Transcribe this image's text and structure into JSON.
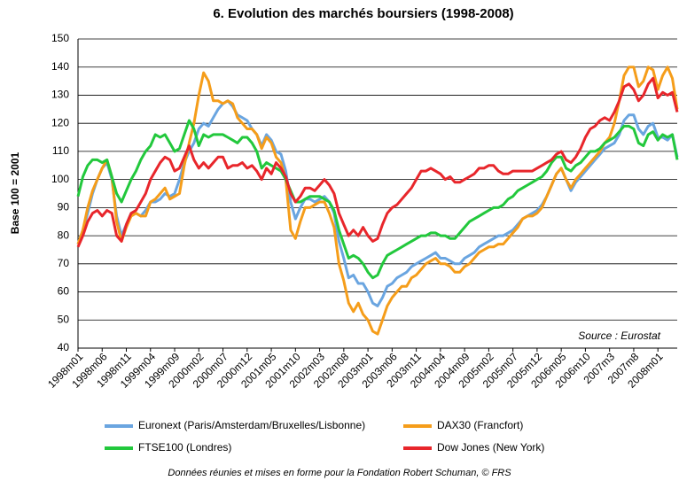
{
  "chart_data": {
    "type": "line",
    "title": "6.  Evolution des marchés boursiers (1998-2008)",
    "y_label": "Base 100 = 2001",
    "annotation": "Source : Eurostat",
    "footnote": "Données réunies et mises en forme pour la Fondation Robert Schuman, © FRS",
    "ylim": [
      40,
      150
    ],
    "yticks": [
      40,
      50,
      60,
      70,
      80,
      90,
      100,
      110,
      120,
      130,
      140,
      150
    ],
    "grid": true,
    "categories": [
      "1998m01",
      null,
      null,
      null,
      null,
      "1998m06",
      null,
      null,
      null,
      null,
      "1998m11",
      null,
      null,
      null,
      null,
      "1999m04",
      null,
      null,
      null,
      null,
      "1999m09",
      null,
      null,
      null,
      null,
      "2000m02",
      null,
      null,
      null,
      null,
      "2000m07",
      null,
      null,
      null,
      null,
      "2000m12",
      null,
      null,
      null,
      null,
      "2001m05",
      null,
      null,
      null,
      null,
      "2001m10",
      null,
      null,
      null,
      null,
      "2002m03",
      null,
      null,
      null,
      null,
      "2002m08",
      null,
      null,
      null,
      null,
      "2003m01",
      null,
      null,
      null,
      null,
      "2003m06",
      null,
      null,
      null,
      null,
      "2003m11",
      null,
      null,
      null,
      null,
      "2004m04",
      null,
      null,
      null,
      null,
      "2004m09",
      null,
      null,
      null,
      null,
      "2005m02",
      null,
      null,
      null,
      null,
      "2005m07",
      null,
      null,
      null,
      null,
      "2005m12",
      null,
      null,
      null,
      null,
      "2006m05",
      null,
      null,
      null,
      null,
      "2006m10",
      null,
      null,
      null,
      null,
      "2007m3",
      null,
      null,
      null,
      null,
      "2007m8",
      null,
      null,
      null,
      null,
      "2008m01",
      null,
      null,
      null,
      null
    ],
    "series": [
      {
        "name": "Euronext (Paris/Amsterdam/Bruxelles/Lisbonne)",
        "color": "#6aa5e0",
        "values": [
          77,
          82,
          88,
          95,
          100,
          104,
          106,
          100,
          87,
          80,
          84,
          88,
          88,
          87,
          89,
          92,
          92,
          93,
          95,
          94,
          95,
          100,
          106,
          110,
          113,
          118,
          120,
          119,
          122,
          125,
          127,
          128,
          126,
          123,
          122,
          121,
          118,
          116,
          112,
          116,
          114,
          110,
          109,
          103,
          92,
          86,
          90,
          93,
          93,
          92,
          93,
          94,
          92,
          88,
          78,
          72,
          65,
          66,
          63,
          63,
          60,
          56,
          55,
          58,
          62,
          63,
          65,
          66,
          67,
          69,
          70,
          71,
          72,
          73,
          74,
          72,
          72,
          71,
          70,
          70,
          72,
          73,
          74,
          76,
          77,
          78,
          79,
          80,
          80,
          81,
          82,
          84,
          86,
          87,
          88,
          89,
          91,
          94,
          98,
          102,
          104,
          100,
          96,
          99,
          101,
          103,
          105,
          107,
          109,
          111,
          112,
          113,
          116,
          121,
          123,
          123,
          118,
          116,
          119,
          120,
          115,
          115,
          114,
          116,
          108
        ]
      },
      {
        "name": "DAX30 (Francfort)",
        "color": "#f59d1a",
        "values": [
          77,
          82,
          90,
          96,
          100,
          104,
          107,
          101,
          85,
          78,
          83,
          87,
          88,
          87,
          87,
          92,
          93,
          95,
          97,
          93,
          94,
          95,
          105,
          113,
          120,
          130,
          138,
          135,
          128,
          128,
          127,
          128,
          127,
          122,
          120,
          118,
          118,
          116,
          111,
          115,
          113,
          108,
          106,
          100,
          82,
          79,
          85,
          90,
          90,
          91,
          92,
          92,
          88,
          83,
          70,
          64,
          56,
          53,
          56,
          52,
          50,
          46,
          45,
          50,
          55,
          58,
          60,
          62,
          62,
          65,
          66,
          68,
          70,
          71,
          72,
          70,
          70,
          69,
          67,
          67,
          69,
          70,
          72,
          74,
          75,
          76,
          76,
          77,
          77,
          79,
          81,
          83,
          86,
          87,
          87,
          88,
          90,
          94,
          98,
          102,
          104,
          100,
          97,
          100,
          102,
          104,
          106,
          108,
          110,
          113,
          115,
          120,
          128,
          137,
          140,
          140,
          133,
          135,
          140,
          139,
          132,
          137,
          140,
          136,
          125
        ]
      },
      {
        "name": "FTSE100 (Londres)",
        "color": "#22c83c",
        "values": [
          94,
          101,
          105,
          107,
          107,
          106,
          107,
          101,
          95,
          92,
          96,
          100,
          103,
          107,
          110,
          112,
          116,
          115,
          116,
          113,
          110,
          111,
          116,
          121,
          118,
          112,
          116,
          115,
          116,
          116,
          116,
          115,
          114,
          113,
          115,
          115,
          113,
          110,
          104,
          106,
          105,
          104,
          103,
          100,
          96,
          92,
          92,
          93,
          94,
          94,
          94,
          93,
          92,
          89,
          82,
          77,
          72,
          73,
          72,
          70,
          67,
          65,
          66,
          70,
          73,
          74,
          75,
          76,
          77,
          78,
          79,
          80,
          80,
          81,
          81,
          80,
          80,
          79,
          79,
          81,
          83,
          85,
          86,
          87,
          88,
          89,
          90,
          90,
          91,
          93,
          94,
          96,
          97,
          98,
          99,
          100,
          101,
          103,
          106,
          108,
          108,
          104,
          103,
          105,
          106,
          108,
          110,
          110,
          111,
          113,
          114,
          115,
          117,
          119,
          119,
          118,
          113,
          112,
          116,
          117,
          114,
          116,
          115,
          116,
          107
        ]
      },
      {
        "name": "Dow Jones (New York)",
        "color": "#e8262b",
        "values": [
          76,
          80,
          85,
          88,
          89,
          87,
          89,
          88,
          80,
          78,
          84,
          88,
          89,
          92,
          95,
          100,
          103,
          106,
          108,
          107,
          103,
          104,
          108,
          112,
          107,
          104,
          106,
          104,
          106,
          108,
          108,
          104,
          105,
          105,
          106,
          104,
          105,
          103,
          100,
          104,
          102,
          106,
          104,
          101,
          95,
          92,
          94,
          97,
          97,
          96,
          98,
          100,
          98,
          95,
          88,
          84,
          80,
          82,
          80,
          83,
          80,
          78,
          79,
          84,
          88,
          90,
          91,
          93,
          95,
          97,
          100,
          103,
          103,
          104,
          103,
          102,
          100,
          101,
          99,
          99,
          100,
          101,
          102,
          104,
          104,
          105,
          105,
          103,
          102,
          102,
          103,
          103,
          103,
          103,
          103,
          104,
          105,
          106,
          107,
          109,
          110,
          107,
          106,
          108,
          111,
          115,
          118,
          119,
          121,
          122,
          121,
          124,
          128,
          133,
          134,
          132,
          128,
          130,
          134,
          136,
          129,
          131,
          130,
          131,
          124
        ]
      }
    ]
  }
}
